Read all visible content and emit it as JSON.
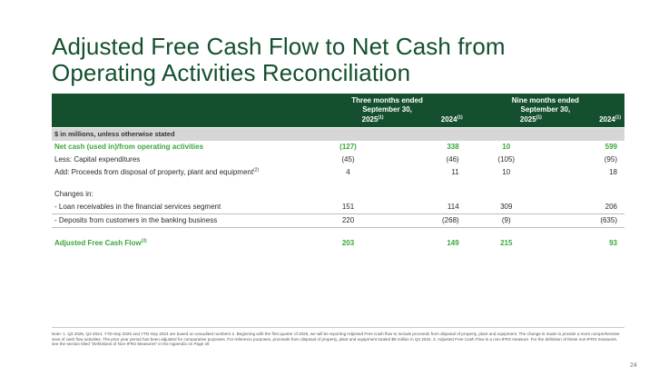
{
  "title": {
    "line1": "Adjusted Free Cash Flow to Net Cash from",
    "line2": "Operating Activities Reconciliation"
  },
  "table": {
    "group_headers": [
      {
        "line1": "Three months ended",
        "line2": "September 30,"
      },
      {
        "line1": "Nine months ended",
        "line2": "September 30,"
      }
    ],
    "year_headers": [
      "2025",
      "2024",
      "2025",
      "2024"
    ],
    "year_sup": "(1)",
    "units": "$ in millions, unless otherwise stated",
    "rows": [
      {
        "label": "Net cash (used in)/from operating activities",
        "values": [
          "(127)",
          "338",
          "10",
          "599"
        ],
        "style": "green"
      },
      {
        "label": "Less: Capital expenditures",
        "values": [
          "(45)",
          "(46)",
          "(105)",
          "(95)"
        ],
        "style": "plain"
      },
      {
        "label": "Add: Proceeds from disposal of property, plant and equipment",
        "sup": "(2)",
        "values": [
          "4",
          "11",
          "10",
          "18"
        ],
        "style": "plain"
      },
      {
        "label": "Changes in:",
        "values": [
          "",
          "",
          "",
          ""
        ],
        "style": "plain"
      },
      {
        "label": "- Loan receivables in the financial services segment",
        "values": [
          "151",
          "114",
          "309",
          "206"
        ],
        "style": "plain"
      },
      {
        "label": "- Deposits from customers in the banking business",
        "values": [
          "220",
          "(268)",
          "(9)",
          "(635)"
        ],
        "style": "plain"
      },
      {
        "label": "Adjusted Free Cash Flow",
        "sup": "(3)",
        "values": [
          "203",
          "149",
          "215",
          "93"
        ],
        "style": "green"
      }
    ]
  },
  "footnote": "Note: 1. Q3 2025, Q3 2024, YTD-Sep 2025 and YTD-Sep 2024 are based on unaudited numbers 2. Beginning with the first quarter of 2025, we will be reporting Adjusted Free Cash flow to include proceeds from disposal of property, plant and equipment. The change is made to provide a more comprehensive view of cash flow activities. The prior year period has been adjusted for comparative purposes. For reference purposes, proceeds from disposal of property, plant and equipment totaled $8 million in Q4 2024. 3. Adjusted Free Cash Flow is a non-IFRS measure. For the definition of these non-IFRS measures, see the section titled \"Definitions of Non-IFRS Measures\" in the Appendix on Page 28",
  "page_number": "24"
}
